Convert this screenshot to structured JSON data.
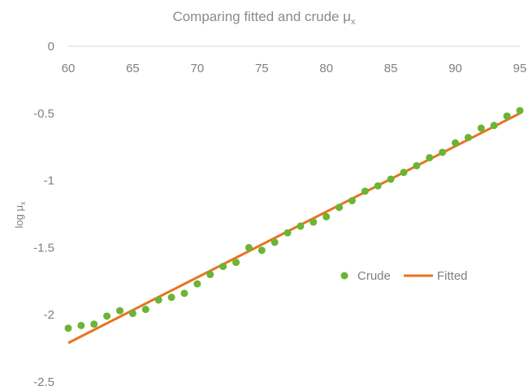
{
  "chart_data": {
    "type": "scatter",
    "title": "Comparing fitted and crude μ",
    "title_subscript": "x",
    "ylabel": "log μ",
    "ylabel_subscript": "x",
    "xlim": [
      60,
      95
    ],
    "ylim": [
      -2.5,
      0
    ],
    "x_ticks": [
      60,
      65,
      70,
      75,
      80,
      85,
      90,
      95
    ],
    "y_ticks": [
      0,
      -0.5,
      -1,
      -1.5,
      -2,
      -2.5
    ],
    "x_tick_labels": [
      "60",
      "65",
      "70",
      "75",
      "80",
      "85",
      "90",
      "95"
    ],
    "y_tick_labels": [
      "0",
      "-0.5",
      "-1",
      "-1.5",
      "-2",
      "-2.5"
    ],
    "x_axis_position": "top",
    "grid": false,
    "legend_position": "center-right",
    "series": [
      {
        "name": "Crude",
        "mark": "point",
        "color": "#6ab533",
        "x": [
          60,
          61,
          62,
          63,
          64,
          65,
          66,
          67,
          68,
          69,
          70,
          71,
          72,
          73,
          74,
          75,
          76,
          77,
          78,
          79,
          80,
          81,
          82,
          83,
          84,
          85,
          86,
          87,
          88,
          89,
          90,
          91,
          92,
          93,
          94,
          95
        ],
        "y": [
          -2.1,
          -2.08,
          -2.07,
          -2.01,
          -1.97,
          -1.99,
          -1.96,
          -1.89,
          -1.87,
          -1.84,
          -1.77,
          -1.7,
          -1.64,
          -1.61,
          -1.5,
          -1.52,
          -1.46,
          -1.39,
          -1.34,
          -1.31,
          -1.27,
          -1.2,
          -1.15,
          -1.08,
          -1.04,
          -0.99,
          -0.94,
          -0.89,
          -0.83,
          -0.79,
          -0.72,
          -0.68,
          -0.61,
          -0.59,
          -0.52,
          -0.48
        ]
      },
      {
        "name": "Fitted",
        "mark": "line",
        "color": "#e8731f",
        "x": [
          60,
          95
        ],
        "y": [
          -2.21,
          -0.5
        ]
      }
    ]
  }
}
